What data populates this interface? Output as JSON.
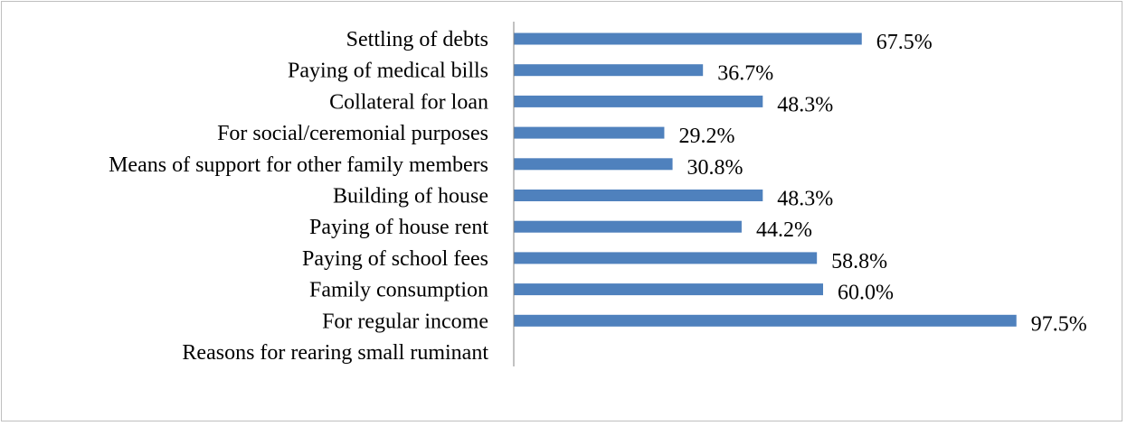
{
  "chart_data": {
    "type": "bar",
    "orientation": "horizontal",
    "categories": [
      "Settling of debts",
      "Paying of medical bills",
      "Collateral for loan",
      "For social/ceremonial purposes",
      "Means of support for other family members",
      "Building of house",
      "Paying of house rent",
      "Paying of school fees ",
      "Family consumption",
      "For regular income",
      "Reasons for rearing small ruminant"
    ],
    "values": [
      67.5,
      36.7,
      48.3,
      29.2,
      30.8,
      48.3,
      44.2,
      58.8,
      60.0,
      97.5,
      null
    ],
    "value_labels": [
      "67.5%",
      "36.7%",
      "48.3%",
      "29.2%",
      "30.8%",
      "48.3%",
      "44.2%",
      "58.8%",
      "60.0%",
      "97.5%",
      ""
    ],
    "xlim": [
      0,
      100
    ],
    "grid": false,
    "legend": "none",
    "bar_color": "#4f81bd",
    "axis_color": "#868686"
  }
}
